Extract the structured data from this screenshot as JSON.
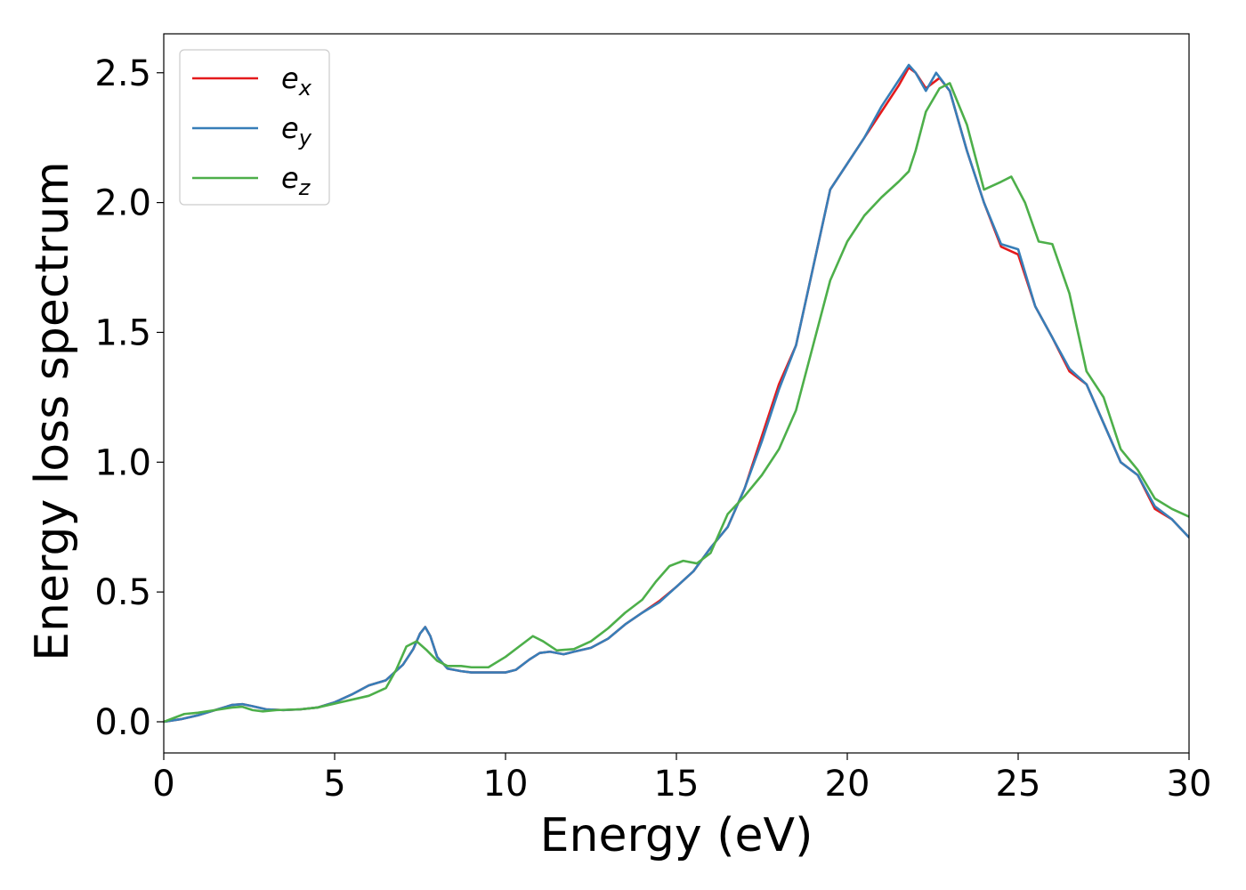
{
  "chart_data": {
    "type": "line",
    "title": "",
    "xlabel": "Energy (eV)",
    "ylabel": "Energy loss spectrum",
    "xlim": [
      0,
      30
    ],
    "ylim": [
      -0.12,
      2.65
    ],
    "x_ticks": [
      {
        "value": 0,
        "label": "0"
      },
      {
        "value": 5,
        "label": "5"
      },
      {
        "value": 10,
        "label": "10"
      },
      {
        "value": 15,
        "label": "15"
      },
      {
        "value": 20,
        "label": "20"
      },
      {
        "value": 25,
        "label": "25"
      },
      {
        "value": 30,
        "label": "30"
      }
    ],
    "y_ticks": [
      {
        "value": 0.0,
        "label": "0.0"
      },
      {
        "value": 0.5,
        "label": "0.5"
      },
      {
        "value": 1.0,
        "label": "1.0"
      },
      {
        "value": 1.5,
        "label": "1.5"
      },
      {
        "value": 2.0,
        "label": "2.0"
      },
      {
        "value": 2.5,
        "label": "2.5"
      }
    ],
    "grid": false,
    "legend_position": "top-left",
    "series": [
      {
        "name": "e",
        "subscript": "x",
        "color": "#e41a1c",
        "points": [
          [
            0,
            0
          ],
          [
            0.5,
            0.01
          ],
          [
            1,
            0.025
          ],
          [
            1.5,
            0.045
          ],
          [
            2,
            0.065
          ],
          [
            2.3,
            0.068
          ],
          [
            2.6,
            0.06
          ],
          [
            3,
            0.048
          ],
          [
            3.5,
            0.045
          ],
          [
            4,
            0.048
          ],
          [
            4.5,
            0.055
          ],
          [
            5,
            0.075
          ],
          [
            5.5,
            0.105
          ],
          [
            6,
            0.14
          ],
          [
            6.5,
            0.16
          ],
          [
            7,
            0.22
          ],
          [
            7.3,
            0.28
          ],
          [
            7.5,
            0.34
          ],
          [
            7.65,
            0.365
          ],
          [
            7.8,
            0.33
          ],
          [
            8,
            0.25
          ],
          [
            8.3,
            0.205
          ],
          [
            8.7,
            0.195
          ],
          [
            9,
            0.19
          ],
          [
            9.5,
            0.19
          ],
          [
            10,
            0.19
          ],
          [
            10.3,
            0.2
          ],
          [
            10.7,
            0.24
          ],
          [
            11,
            0.265
          ],
          [
            11.3,
            0.27
          ],
          [
            11.7,
            0.26
          ],
          [
            12,
            0.27
          ],
          [
            12.5,
            0.285
          ],
          [
            13,
            0.32
          ],
          [
            13.5,
            0.375
          ],
          [
            14,
            0.42
          ],
          [
            14.5,
            0.465
          ],
          [
            15,
            0.52
          ],
          [
            15.5,
            0.58
          ],
          [
            16,
            0.67
          ],
          [
            16.5,
            0.75
          ],
          [
            17,
            0.9
          ],
          [
            17.5,
            1.1
          ],
          [
            18,
            1.3
          ],
          [
            18.5,
            1.45
          ],
          [
            19,
            1.75
          ],
          [
            19.5,
            2.05
          ],
          [
            20,
            2.15
          ],
          [
            20.5,
            2.25
          ],
          [
            21,
            2.35
          ],
          [
            21.5,
            2.45
          ],
          [
            21.8,
            2.52
          ],
          [
            22,
            2.5
          ],
          [
            22.3,
            2.44
          ],
          [
            22.7,
            2.48
          ],
          [
            23,
            2.43
          ],
          [
            23.5,
            2.2
          ],
          [
            24,
            2.0
          ],
          [
            24.5,
            1.83
          ],
          [
            25,
            1.8
          ],
          [
            25.5,
            1.6
          ],
          [
            26,
            1.48
          ],
          [
            26.5,
            1.35
          ],
          [
            27,
            1.3
          ],
          [
            27.5,
            1.15
          ],
          [
            28,
            1.0
          ],
          [
            28.5,
            0.95
          ],
          [
            29,
            0.82
          ],
          [
            29.5,
            0.78
          ],
          [
            30,
            0.71
          ]
        ]
      },
      {
        "name": "e",
        "subscript": "y",
        "color": "#377eb8",
        "points": [
          [
            0,
            0
          ],
          [
            0.5,
            0.01
          ],
          [
            1,
            0.025
          ],
          [
            1.5,
            0.045
          ],
          [
            2,
            0.065
          ],
          [
            2.3,
            0.068
          ],
          [
            2.6,
            0.06
          ],
          [
            3,
            0.048
          ],
          [
            3.5,
            0.045
          ],
          [
            4,
            0.048
          ],
          [
            4.5,
            0.055
          ],
          [
            5,
            0.075
          ],
          [
            5.5,
            0.105
          ],
          [
            6,
            0.14
          ],
          [
            6.5,
            0.16
          ],
          [
            7,
            0.22
          ],
          [
            7.3,
            0.28
          ],
          [
            7.5,
            0.34
          ],
          [
            7.65,
            0.365
          ],
          [
            7.8,
            0.33
          ],
          [
            8,
            0.25
          ],
          [
            8.3,
            0.205
          ],
          [
            8.7,
            0.195
          ],
          [
            9,
            0.19
          ],
          [
            9.5,
            0.19
          ],
          [
            10,
            0.19
          ],
          [
            10.3,
            0.2
          ],
          [
            10.7,
            0.24
          ],
          [
            11,
            0.265
          ],
          [
            11.3,
            0.27
          ],
          [
            11.7,
            0.26
          ],
          [
            12,
            0.27
          ],
          [
            12.5,
            0.285
          ],
          [
            13,
            0.32
          ],
          [
            13.5,
            0.375
          ],
          [
            14,
            0.42
          ],
          [
            14.5,
            0.46
          ],
          [
            15,
            0.52
          ],
          [
            15.5,
            0.58
          ],
          [
            16,
            0.67
          ],
          [
            16.5,
            0.75
          ],
          [
            17,
            0.9
          ],
          [
            17.5,
            1.08
          ],
          [
            18,
            1.28
          ],
          [
            18.5,
            1.45
          ],
          [
            19,
            1.75
          ],
          [
            19.5,
            2.05
          ],
          [
            20,
            2.15
          ],
          [
            20.5,
            2.25
          ],
          [
            21,
            2.37
          ],
          [
            21.5,
            2.47
          ],
          [
            21.8,
            2.53
          ],
          [
            22,
            2.5
          ],
          [
            22.3,
            2.43
          ],
          [
            22.6,
            2.5
          ],
          [
            23,
            2.43
          ],
          [
            23.5,
            2.2
          ],
          [
            24,
            2.0
          ],
          [
            24.5,
            1.84
          ],
          [
            25,
            1.82
          ],
          [
            25.5,
            1.6
          ],
          [
            26,
            1.48
          ],
          [
            26.5,
            1.36
          ],
          [
            27,
            1.3
          ],
          [
            27.5,
            1.15
          ],
          [
            28,
            1.0
          ],
          [
            28.5,
            0.95
          ],
          [
            29,
            0.83
          ],
          [
            29.5,
            0.78
          ],
          [
            30,
            0.71
          ]
        ]
      },
      {
        "name": "e",
        "subscript": "z",
        "color": "#4daf4a",
        "points": [
          [
            0,
            0
          ],
          [
            0.3,
            0.015
          ],
          [
            0.6,
            0.03
          ],
          [
            1,
            0.035
          ],
          [
            1.5,
            0.045
          ],
          [
            2,
            0.055
          ],
          [
            2.3,
            0.058
          ],
          [
            2.6,
            0.045
          ],
          [
            2.9,
            0.04
          ],
          [
            3.3,
            0.045
          ],
          [
            4,
            0.048
          ],
          [
            4.5,
            0.055
          ],
          [
            5,
            0.07
          ],
          [
            5.5,
            0.085
          ],
          [
            6,
            0.1
          ],
          [
            6.5,
            0.13
          ],
          [
            6.8,
            0.2
          ],
          [
            7.1,
            0.29
          ],
          [
            7.4,
            0.31
          ],
          [
            7.7,
            0.275
          ],
          [
            8,
            0.235
          ],
          [
            8.3,
            0.215
          ],
          [
            8.7,
            0.215
          ],
          [
            9,
            0.21
          ],
          [
            9.5,
            0.21
          ],
          [
            10,
            0.25
          ],
          [
            10.4,
            0.29
          ],
          [
            10.8,
            0.33
          ],
          [
            11.1,
            0.31
          ],
          [
            11.5,
            0.275
          ],
          [
            12,
            0.28
          ],
          [
            12.5,
            0.31
          ],
          [
            13,
            0.36
          ],
          [
            13.5,
            0.42
          ],
          [
            14,
            0.47
          ],
          [
            14.4,
            0.54
          ],
          [
            14.8,
            0.6
          ],
          [
            15.2,
            0.62
          ],
          [
            15.6,
            0.61
          ],
          [
            16,
            0.65
          ],
          [
            16.5,
            0.8
          ],
          [
            17,
            0.87
          ],
          [
            17.5,
            0.95
          ],
          [
            18,
            1.05
          ],
          [
            18.5,
            1.2
          ],
          [
            19,
            1.45
          ],
          [
            19.5,
            1.7
          ],
          [
            20,
            1.85
          ],
          [
            20.5,
            1.95
          ],
          [
            21,
            2.02
          ],
          [
            21.5,
            2.08
          ],
          [
            21.8,
            2.12
          ],
          [
            22,
            2.2
          ],
          [
            22.3,
            2.35
          ],
          [
            22.7,
            2.44
          ],
          [
            23,
            2.46
          ],
          [
            23.5,
            2.3
          ],
          [
            24,
            2.05
          ],
          [
            24.5,
            2.08
          ],
          [
            24.8,
            2.1
          ],
          [
            25.2,
            2.0
          ],
          [
            25.6,
            1.85
          ],
          [
            26,
            1.84
          ],
          [
            26.5,
            1.65
          ],
          [
            27,
            1.35
          ],
          [
            27.5,
            1.25
          ],
          [
            28,
            1.05
          ],
          [
            28.5,
            0.97
          ],
          [
            29,
            0.86
          ],
          [
            29.5,
            0.82
          ],
          [
            30,
            0.79
          ]
        ]
      }
    ]
  }
}
